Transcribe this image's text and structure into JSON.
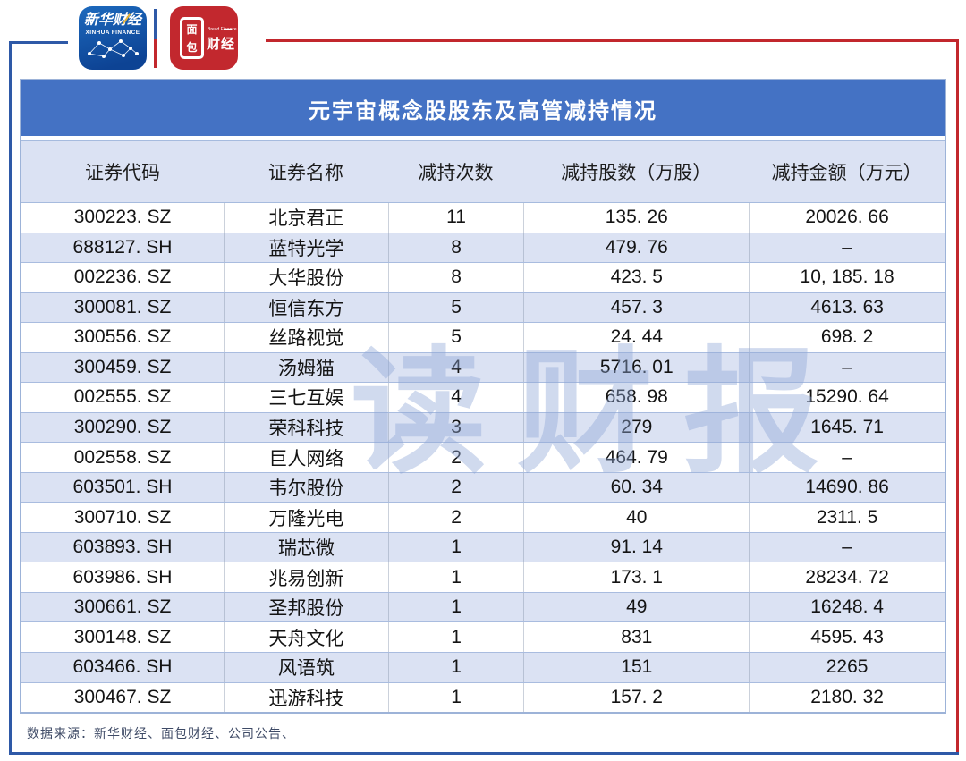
{
  "logos": {
    "xinhua": {
      "title": "新华财经",
      "subtitle": "XINHUA FINANCE"
    },
    "bread": {
      "box_top": "面",
      "box_bottom": "包",
      "right": "财经",
      "subtitle": "Bread Finance"
    }
  },
  "table": {
    "title": "元宇宙概念股股东及高管减持情况",
    "columns": [
      "证券代码",
      "证券名称",
      "减持次数",
      "减持股数（万股）",
      "减持金额（万元）"
    ],
    "rows": [
      [
        "300223. SZ",
        "北京君正",
        "11",
        "135. 26",
        "20026. 66"
      ],
      [
        "688127. SH",
        "蓝特光学",
        "8",
        "479. 76",
        "–"
      ],
      [
        "002236. SZ",
        "大华股份",
        "8",
        "423. 5",
        "10, 185. 18"
      ],
      [
        "300081. SZ",
        "恒信东方",
        "5",
        "457. 3",
        "4613. 63"
      ],
      [
        "300556. SZ",
        "丝路视觉",
        "5",
        "24. 44",
        "698. 2"
      ],
      [
        "300459. SZ",
        "汤姆猫",
        "4",
        "5716. 01",
        "–"
      ],
      [
        "002555. SZ",
        "三七互娱",
        "4",
        "658. 98",
        "15290. 64"
      ],
      [
        "300290. SZ",
        "荣科科技",
        "3",
        "279",
        "1645. 71"
      ],
      [
        "002558. SZ",
        "巨人网络",
        "2",
        "464. 79",
        "–"
      ],
      [
        "603501. SH",
        "韦尔股份",
        "2",
        "60. 34",
        "14690. 86"
      ],
      [
        "300710. SZ",
        "万隆光电",
        "2",
        "40",
        "2311. 5"
      ],
      [
        "603893. SH",
        "瑞芯微",
        "1",
        "91. 14",
        "–"
      ],
      [
        "603986. SH",
        "兆易创新",
        "1",
        "173. 1",
        "28234. 72"
      ],
      [
        "300661. SZ",
        "圣邦股份",
        "1",
        "49",
        "16248. 4"
      ],
      [
        "300148. SZ",
        "天舟文化",
        "1",
        "831",
        "4595. 43"
      ],
      [
        "603466. SH",
        "风语筑",
        "1",
        "151",
        "2265"
      ],
      [
        "300467. SZ",
        "迅游科技",
        "1",
        "157. 2",
        "2180. 32"
      ]
    ]
  },
  "chart_data": {
    "type": "table",
    "title": "元宇宙概念股股东及高管减持情况",
    "columns": [
      "证券代码",
      "证券名称",
      "减持次数",
      "减持股数（万股）",
      "减持金额（万元）"
    ],
    "rows": [
      {
        "code": "300223.SZ",
        "name": "北京君正",
        "times": 11,
        "shares": 135.26,
        "amount": 20026.66
      },
      {
        "code": "688127.SH",
        "name": "蓝特光学",
        "times": 8,
        "shares": 479.76,
        "amount": null
      },
      {
        "code": "002236.SZ",
        "name": "大华股份",
        "times": 8,
        "shares": 423.5,
        "amount": 10185.18
      },
      {
        "code": "300081.SZ",
        "name": "恒信东方",
        "times": 5,
        "shares": 457.3,
        "amount": 4613.63
      },
      {
        "code": "300556.SZ",
        "name": "丝路视觉",
        "times": 5,
        "shares": 24.44,
        "amount": 698.2
      },
      {
        "code": "300459.SZ",
        "name": "汤姆猫",
        "times": 4,
        "shares": 5716.01,
        "amount": null
      },
      {
        "code": "002555.SZ",
        "name": "三七互娱",
        "times": 4,
        "shares": 658.98,
        "amount": 15290.64
      },
      {
        "code": "300290.SZ",
        "name": "荣科科技",
        "times": 3,
        "shares": 279,
        "amount": 1645.71
      },
      {
        "code": "002558.SZ",
        "name": "巨人网络",
        "times": 2,
        "shares": 464.79,
        "amount": null
      },
      {
        "code": "603501.SH",
        "name": "韦尔股份",
        "times": 2,
        "shares": 60.34,
        "amount": 14690.86
      },
      {
        "code": "300710.SZ",
        "name": "万隆光电",
        "times": 2,
        "shares": 40,
        "amount": 2311.5
      },
      {
        "code": "603893.SH",
        "name": "瑞芯微",
        "times": 1,
        "shares": 91.14,
        "amount": null
      },
      {
        "code": "603986.SH",
        "name": "兆易创新",
        "times": 1,
        "shares": 173.1,
        "amount": 28234.72
      },
      {
        "code": "300661.SZ",
        "name": "圣邦股份",
        "times": 1,
        "shares": 49,
        "amount": 16248.4
      },
      {
        "code": "300148.SZ",
        "name": "天舟文化",
        "times": 1,
        "shares": 831,
        "amount": 4595.43
      },
      {
        "code": "603466.SH",
        "name": "风语筑",
        "times": 1,
        "shares": 151,
        "amount": 2265
      },
      {
        "code": "300467.SZ",
        "name": "迅游科技",
        "times": 1,
        "shares": 157.2,
        "amount": 2180.32
      }
    ]
  },
  "watermark": "读财报",
  "footer": {
    "source": "数据来源：新华财经、面包财经、公司公告、"
  },
  "colors": {
    "title_bar": "#4472C4",
    "row_band": "#DBE2F3",
    "frame_blue": "#2E59A7",
    "frame_red": "#C2272D",
    "watermark": "#8FA8D6"
  }
}
